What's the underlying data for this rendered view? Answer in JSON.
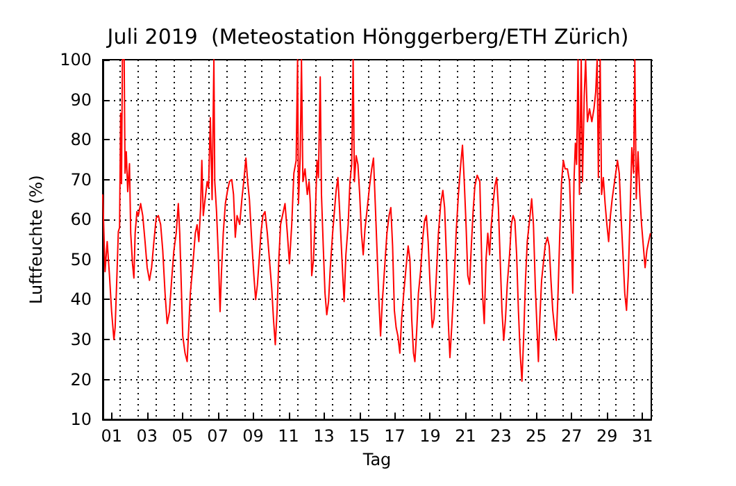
{
  "chart_data": {
    "type": "line",
    "title": "Juli 2019  (Meteostation Hönggerberg/ETH Zürich)",
    "xlabel": "Tag",
    "ylabel": "Luftfeuchte (%)",
    "color": "#ff0000",
    "marker": "none",
    "line_style": "solid",
    "grid": true,
    "xlim": [
      1,
      32
    ],
    "ylim": [
      10,
      100
    ],
    "yticks": [
      10,
      20,
      30,
      40,
      50,
      60,
      70,
      80,
      90,
      100
    ],
    "xticks": [
      {
        "value": 1.5,
        "label": "01"
      },
      {
        "value": 3.5,
        "label": "03"
      },
      {
        "value": 5.5,
        "label": "05"
      },
      {
        "value": 7.5,
        "label": "07"
      },
      {
        "value": 9.5,
        "label": "09"
      },
      {
        "value": 11.5,
        "label": "11"
      },
      {
        "value": 13.5,
        "label": "13"
      },
      {
        "value": 15.5,
        "label": "15"
      },
      {
        "value": 17.5,
        "label": "17"
      },
      {
        "value": 19.5,
        "label": "19"
      },
      {
        "value": 21.5,
        "label": "21"
      },
      {
        "value": 23.5,
        "label": "23"
      },
      {
        "value": 25.5,
        "label": "25"
      },
      {
        "value": 27.5,
        "label": "27"
      },
      {
        "value": 29.5,
        "label": "29"
      },
      {
        "value": 31.5,
        "label": "31"
      },
      {
        "value": 2,
        "label": null
      },
      {
        "value": 3,
        "label": null
      },
      {
        "value": 4,
        "label": null
      },
      {
        "value": 5,
        "label": null
      },
      {
        "value": 6,
        "label": null
      },
      {
        "value": 7,
        "label": null
      },
      {
        "value": 8,
        "label": null
      },
      {
        "value": 9,
        "label": null
      },
      {
        "value": 10,
        "label": null
      },
      {
        "value": 11,
        "label": null
      },
      {
        "value": 12,
        "label": null
      },
      {
        "value": 13,
        "label": null
      },
      {
        "value": 14,
        "label": null
      },
      {
        "value": 15,
        "label": null
      },
      {
        "value": 16,
        "label": null
      },
      {
        "value": 17,
        "label": null
      },
      {
        "value": 18,
        "label": null
      },
      {
        "value": 19,
        "label": null
      },
      {
        "value": 20,
        "label": null
      },
      {
        "value": 21,
        "label": null
      },
      {
        "value": 22,
        "label": null
      },
      {
        "value": 23,
        "label": null
      },
      {
        "value": 24,
        "label": null
      },
      {
        "value": 25,
        "label": null
      },
      {
        "value": 26,
        "label": null
      },
      {
        "value": 27,
        "label": null
      },
      {
        "value": 28,
        "label": null
      },
      {
        "value": 29,
        "label": null
      },
      {
        "value": 30,
        "label": null
      },
      {
        "value": 31,
        "label": null
      }
    ],
    "x": [
      1.0,
      1.13,
      1.25,
      1.38,
      1.5,
      1.63,
      1.7,
      1.8,
      1.88,
      1.95,
      2.01,
      2.06,
      2.11,
      2.21,
      2.26,
      2.33,
      2.41,
      2.51,
      2.58,
      2.68,
      2.76,
      2.83,
      2.93,
      3.01,
      3.14,
      3.26,
      3.39,
      3.51,
      3.64,
      3.76,
      3.89,
      4.02,
      4.14,
      4.27,
      4.39,
      4.52,
      4.64,
      4.77,
      4.89,
      5.02,
      5.15,
      5.27,
      5.35,
      5.45,
      5.52,
      5.65,
      5.77,
      5.85,
      5.95,
      6.08,
      6.23,
      6.33,
      6.43,
      6.53,
      6.6,
      6.68,
      6.78,
      6.9,
      6.98,
      7.08,
      7.18,
      7.28,
      7.33,
      7.43,
      7.53,
      7.63,
      7.71,
      7.81,
      7.93,
      8.04,
      8.16,
      8.29,
      8.39,
      8.49,
      8.59,
      8.74,
      8.86,
      8.99,
      9.09,
      9.19,
      9.29,
      9.42,
      9.54,
      9.64,
      9.74,
      9.84,
      9.94,
      10.05,
      10.17,
      10.3,
      10.42,
      10.55,
      10.65,
      10.75,
      10.85,
      10.95,
      11.05,
      11.3,
      11.43,
      11.55,
      11.68,
      11.8,
      11.93,
      12.01,
      12.06,
      12.16,
      12.23,
      12.31,
      12.43,
      12.56,
      12.66,
      12.73,
      12.81,
      12.91,
      13.01,
      13.11,
      13.19,
      13.29,
      13.36,
      13.46,
      13.56,
      13.66,
      13.76,
      13.86,
      13.99,
      14.09,
      14.19,
      14.29,
      14.39,
      14.52,
      14.64,
      14.74,
      14.87,
      14.97,
      15.07,
      15.15,
      15.22,
      15.32,
      15.42,
      15.52,
      15.62,
      15.72,
      15.82,
      15.95,
      16.08,
      16.2,
      16.3,
      16.4,
      16.5,
      16.6,
      16.7,
      16.8,
      16.93,
      17.06,
      17.18,
      17.28,
      17.38,
      17.48,
      17.58,
      17.68,
      17.79,
      17.89,
      18.01,
      18.14,
      18.26,
      18.36,
      18.46,
      18.56,
      18.64,
      18.74,
      18.84,
      18.96,
      19.09,
      19.19,
      19.29,
      19.39,
      19.52,
      19.62,
      19.72,
      19.84,
      19.97,
      20.1,
      20.22,
      20.32,
      20.42,
      20.52,
      20.62,
      20.72,
      20.85,
      20.97,
      21.1,
      21.23,
      21.33,
      21.43,
      21.53,
      21.63,
      21.73,
      21.83,
      21.93,
      22.03,
      22.16,
      22.31,
      22.36,
      22.46,
      22.56,
      22.66,
      22.76,
      22.86,
      22.96,
      23.06,
      23.16,
      23.26,
      23.36,
      23.46,
      23.56,
      23.66,
      23.76,
      23.86,
      23.99,
      24.09,
      24.19,
      24.29,
      24.39,
      24.49,
      24.59,
      24.69,
      24.79,
      24.89,
      24.99,
      25.12,
      25.24,
      25.34,
      25.45,
      25.55,
      25.62,
      25.7,
      25.8,
      25.9,
      26.0,
      26.13,
      26.23,
      26.33,
      26.43,
      26.53,
      26.63,
      26.73,
      26.83,
      26.93,
      27.03,
      27.13,
      27.26,
      27.38,
      27.48,
      27.56,
      27.63,
      27.71,
      27.78,
      27.86,
      27.94,
      28.04,
      28.11,
      28.21,
      28.29,
      28.39,
      28.51,
      28.64,
      28.76,
      28.86,
      28.94,
      29.01,
      29.11,
      29.19,
      29.29,
      29.39,
      29.49,
      29.59,
      29.69,
      29.79,
      29.89,
      29.99,
      30.09,
      30.19,
      30.29,
      30.4,
      30.5,
      30.6,
      30.7,
      30.8,
      30.9,
      31.0,
      31.07,
      31.15,
      31.25,
      31.35,
      31.45,
      31.55,
      31.65,
      31.75,
      31.85,
      31.95
    ],
    "values": [
      66.3,
      47,
      54.5,
      46,
      37,
      30,
      33,
      46,
      57,
      58,
      86.6,
      69,
      100,
      100,
      71.6,
      77,
      67,
      74,
      56.6,
      49,
      45.4,
      56.6,
      62,
      61,
      64,
      61,
      54.5,
      48,
      44.8,
      48,
      54.5,
      60.4,
      61,
      58.8,
      52.3,
      41.6,
      34,
      37,
      44.8,
      52.3,
      56.6,
      64,
      56.6,
      41.6,
      30.9,
      26.6,
      24.5,
      32,
      41.6,
      48,
      56.6,
      58.7,
      54.5,
      63,
      74.8,
      61,
      65,
      69.5,
      68,
      85.5,
      65,
      100,
      69.5,
      62,
      51.2,
      37,
      47,
      56.6,
      64,
      67,
      69.5,
      70,
      66.3,
      55.6,
      61,
      58.8,
      65,
      70.5,
      75.4,
      69.5,
      65,
      54.5,
      46,
      40,
      43.7,
      50,
      56.6,
      61,
      62,
      56.6,
      50,
      42.7,
      35,
      28.7,
      37,
      50,
      58.8,
      64,
      56.6,
      49,
      58.8,
      71.6,
      74.8,
      100,
      64,
      76,
      100,
      69.5,
      72.7,
      66.3,
      69.5,
      64,
      46,
      50,
      61,
      74.8,
      70.5,
      95.7,
      66.3,
      53.4,
      41.6,
      36.2,
      39.5,
      48,
      56.6,
      62,
      67.3,
      70.5,
      62,
      50,
      39.5,
      51.2,
      58.8,
      69.5,
      73.8,
      100,
      69.5,
      76,
      73.8,
      66.3,
      56.6,
      51.2,
      57.7,
      63,
      68.4,
      72.7,
      75.4,
      64,
      52.3,
      40.5,
      30.9,
      39.5,
      48,
      56.6,
      61,
      63,
      53.4,
      37.3,
      33,
      30.9,
      26.6,
      35.2,
      41.6,
      48,
      53.4,
      50,
      35.2,
      26.6,
      24.5,
      32,
      41.6,
      47,
      55.6,
      59.8,
      61,
      54.5,
      41.6,
      33,
      35.2,
      44.8,
      56.6,
      64,
      67.3,
      63,
      51.2,
      35.2,
      25.5,
      33,
      43.8,
      56.6,
      66.3,
      73.8,
      78.6,
      69.5,
      58.8,
      46,
      43.8,
      53.4,
      62,
      68.4,
      71.1,
      69.5,
      69.5,
      41.6,
      34,
      50,
      56.6,
      51.2,
      58.8,
      64,
      68.4,
      70.5,
      63,
      50,
      37.3,
      29.8,
      35.2,
      43.8,
      51.2,
      58.8,
      61,
      59.8,
      51.2,
      37.3,
      26.6,
      19.6,
      30.9,
      44.8,
      54.5,
      59.8,
      65.2,
      58.8,
      42.7,
      32,
      24.5,
      35.2,
      44.8,
      49,
      53.4,
      55.6,
      53.4,
      44.8,
      37.3,
      33,
      29.8,
      41.6,
      56.6,
      69.5,
      74.8,
      72.7,
      72.7,
      69.5,
      56.6,
      41.6,
      69.5,
      79.1,
      73.8,
      100,
      66.3,
      100,
      69.5,
      90.9,
      100,
      84.5,
      87.7,
      84.5,
      87.7,
      92,
      100,
      70.5,
      100,
      66.3,
      70.5,
      64,
      58.8,
      54.5,
      61,
      65.2,
      68.4,
      71.6,
      74.8,
      71.6,
      61,
      51.2,
      41.6,
      37.3,
      46,
      61,
      78,
      71.6,
      100,
      65.2,
      77,
      66.3,
      58.8,
      53.4,
      48,
      52.3,
      54.5,
      56.6
    ]
  }
}
